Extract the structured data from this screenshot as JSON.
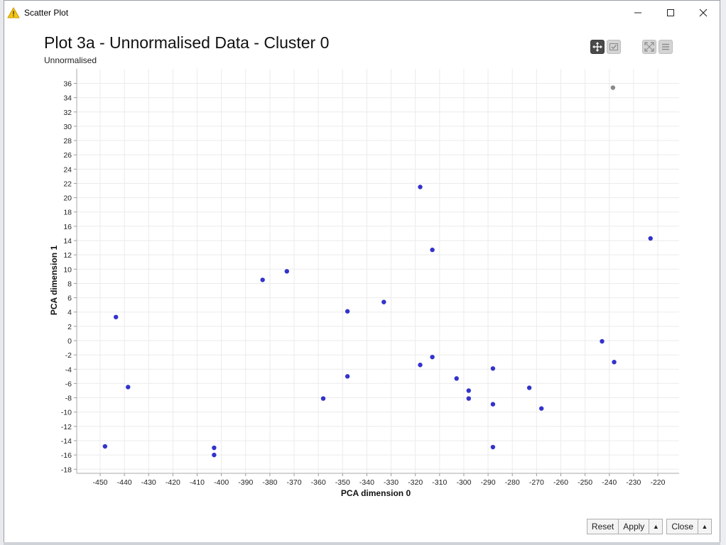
{
  "window": {
    "title": "Scatter Plot",
    "minimize": "—",
    "maximize": "☐",
    "close": "✕"
  },
  "plot": {
    "title": "Plot 3a - Unnormalised Data - Cluster 0",
    "subtitle": "Unnormalised"
  },
  "toolbar": {
    "pan_icon": "move-icon",
    "select_icon": "check-icon",
    "fullscreen_icon": "expand-icon",
    "menu_icon": "hamburger-menu-icon"
  },
  "footer": {
    "reset_label": "Reset",
    "apply_label": "Apply",
    "close_label": "Close",
    "arrow": "▲"
  },
  "chart_data": {
    "type": "scatter",
    "title": "Plot 3a - Unnormalised Data - Cluster 0",
    "subtitle": "Unnormalised",
    "xlabel": "PCA dimension 0",
    "ylabel": "PCA dimension 1",
    "xlim": [
      -453,
      -213
    ],
    "ylim": [
      -19,
      37
    ],
    "xticks": [
      -450,
      -440,
      -430,
      -420,
      -410,
      -400,
      -390,
      -380,
      -370,
      -360,
      -350,
      -340,
      -330,
      -320,
      -310,
      -300,
      -290,
      -280,
      -270,
      -260,
      -250,
      -240,
      -230,
      -220
    ],
    "yticks": [
      -18,
      -16,
      -14,
      -12,
      -10,
      -8,
      -6,
      -4,
      -2,
      0,
      2,
      4,
      6,
      8,
      10,
      12,
      14,
      16,
      18,
      20,
      22,
      24,
      26,
      28,
      30,
      32,
      34,
      36
    ],
    "grid": true,
    "colors": {
      "point": "#3333cc",
      "highlight": "#888888",
      "grid": "#ebebeb"
    },
    "points": [
      {
        "x": -448,
        "y": -14.8
      },
      {
        "x": -443.5,
        "y": 3.3
      },
      {
        "x": -438.5,
        "y": -6.5
      },
      {
        "x": -403,
        "y": -15
      },
      {
        "x": -403,
        "y": -16
      },
      {
        "x": -383,
        "y": 8.5
      },
      {
        "x": -373,
        "y": 9.7
      },
      {
        "x": -358,
        "y": -8.1
      },
      {
        "x": -348,
        "y": 4.1
      },
      {
        "x": -348,
        "y": -5
      },
      {
        "x": -333,
        "y": 5.4
      },
      {
        "x": -318,
        "y": 21.5
      },
      {
        "x": -318,
        "y": -3.4
      },
      {
        "x": -313,
        "y": 12.7
      },
      {
        "x": -313,
        "y": -2.3
      },
      {
        "x": -303,
        "y": -5.3
      },
      {
        "x": -298,
        "y": -7
      },
      {
        "x": -298,
        "y": -8.1
      },
      {
        "x": -288,
        "y": -3.9
      },
      {
        "x": -288,
        "y": -8.9
      },
      {
        "x": -288,
        "y": -14.9
      },
      {
        "x": -273,
        "y": -6.6
      },
      {
        "x": -268,
        "y": -9.5
      },
      {
        "x": -243,
        "y": -0.1
      },
      {
        "x": -238,
        "y": -3
      },
      {
        "x": -223,
        "y": 14.3
      }
    ],
    "highlighted_points": [
      {
        "x": -238.5,
        "y": 35.4
      }
    ]
  }
}
